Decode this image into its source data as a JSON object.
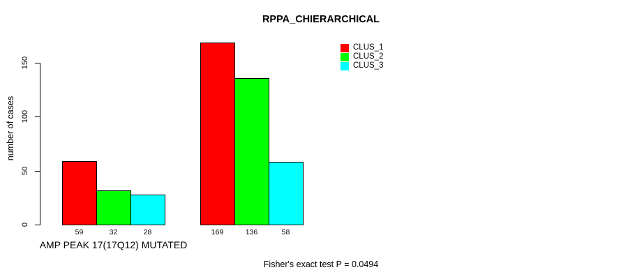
{
  "chart_data": {
    "type": "bar",
    "title": "RPPA_CHIERARCHICAL",
    "ylabel": "number of cases",
    "xlabel": "",
    "footer_note": "Fisher's exact test P = 0.0494",
    "categories": [
      "AMP PEAK 17(17Q12) MUTATED",
      ""
    ],
    "series": [
      {
        "name": "CLUS_1",
        "color": "#FF0000",
        "values": [
          59,
          169
        ]
      },
      {
        "name": "CLUS_2",
        "color": "#00FF00",
        "values": [
          32,
          136
        ]
      },
      {
        "name": "CLUS_3",
        "color": "#00FFFF",
        "values": [
          28,
          58
        ]
      }
    ],
    "yticks": [
      0,
      50,
      100,
      150
    ],
    "ylim": [
      0,
      175
    ],
    "grid": false,
    "legend_position": "top-right",
    "bar_border_color": "#000000",
    "value_labels_shown": true
  }
}
